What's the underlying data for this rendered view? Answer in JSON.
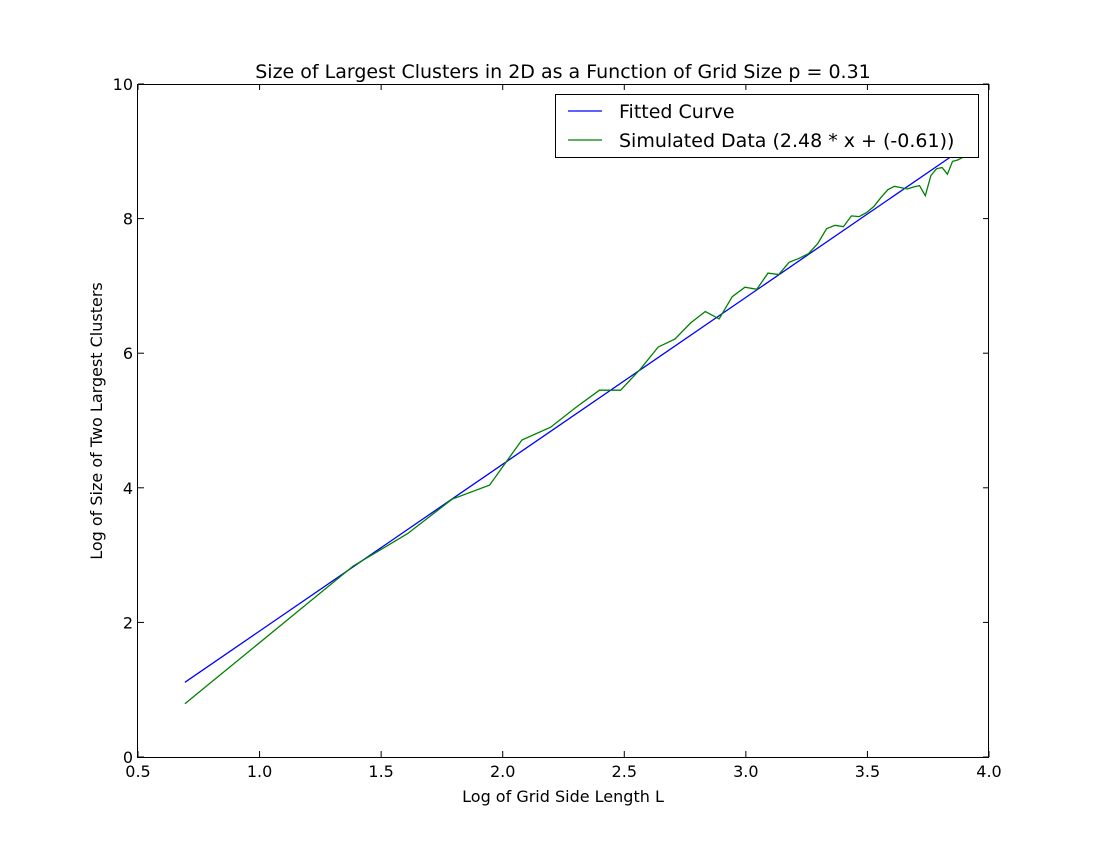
{
  "chart_data": {
    "type": "line",
    "title": "Size of Largest Clusters in 2D as a Function of Grid Size p = 0.31",
    "xlabel": "Log of Grid Side Length L",
    "ylabel": "Log of Size of Two Largest Clusters",
    "xlim": [
      0.5,
      4.0
    ],
    "ylim": [
      0,
      10
    ],
    "xticks": [
      0.5,
      1.0,
      1.5,
      2.0,
      2.5,
      3.0,
      3.5,
      4.0
    ],
    "xtick_labels": [
      "0.5",
      "1.0",
      "1.5",
      "2.0",
      "2.5",
      "3.0",
      "3.5",
      "4.0"
    ],
    "yticks": [
      0,
      2,
      4,
      6,
      8,
      10
    ],
    "ytick_labels": [
      "0",
      "2",
      "4",
      "6",
      "8",
      "10"
    ],
    "grid": false,
    "legend_position": "top-right",
    "series": [
      {
        "name": "Fitted Curve",
        "color": "#0000ff",
        "x": [
          0.693,
          3.892
        ],
        "y": [
          1.11,
          9.04
        ]
      },
      {
        "name": "Simulated Data (2.48 * x + (-0.61))",
        "color": "#008000",
        "x": [
          0.693,
          1.386,
          1.609,
          1.792,
          1.946,
          2.079,
          2.197,
          2.303,
          2.398,
          2.485,
          2.565,
          2.639,
          2.708,
          2.773,
          2.833,
          2.89,
          2.944,
          2.996,
          3.045,
          3.091,
          3.135,
          3.178,
          3.219,
          3.258,
          3.296,
          3.332,
          3.367,
          3.401,
          3.434,
          3.466,
          3.497,
          3.526,
          3.555,
          3.584,
          3.611,
          3.638,
          3.664,
          3.689,
          3.714,
          3.738,
          3.761,
          3.784,
          3.807,
          3.829,
          3.85,
          3.871,
          3.892
        ],
        "y": [
          0.79,
          2.84,
          3.32,
          3.83,
          4.04,
          4.71,
          4.9,
          5.2,
          5.45,
          5.45,
          5.76,
          6.09,
          6.21,
          6.45,
          6.62,
          6.51,
          6.84,
          6.98,
          6.95,
          7.19,
          7.17,
          7.35,
          7.41,
          7.48,
          7.63,
          7.85,
          7.9,
          7.88,
          8.04,
          8.03,
          8.09,
          8.18,
          8.31,
          8.43,
          8.48,
          8.46,
          8.44,
          8.47,
          8.49,
          8.34,
          8.64,
          8.74,
          8.76,
          8.66,
          8.85,
          8.87,
          8.91
        ]
      }
    ]
  }
}
